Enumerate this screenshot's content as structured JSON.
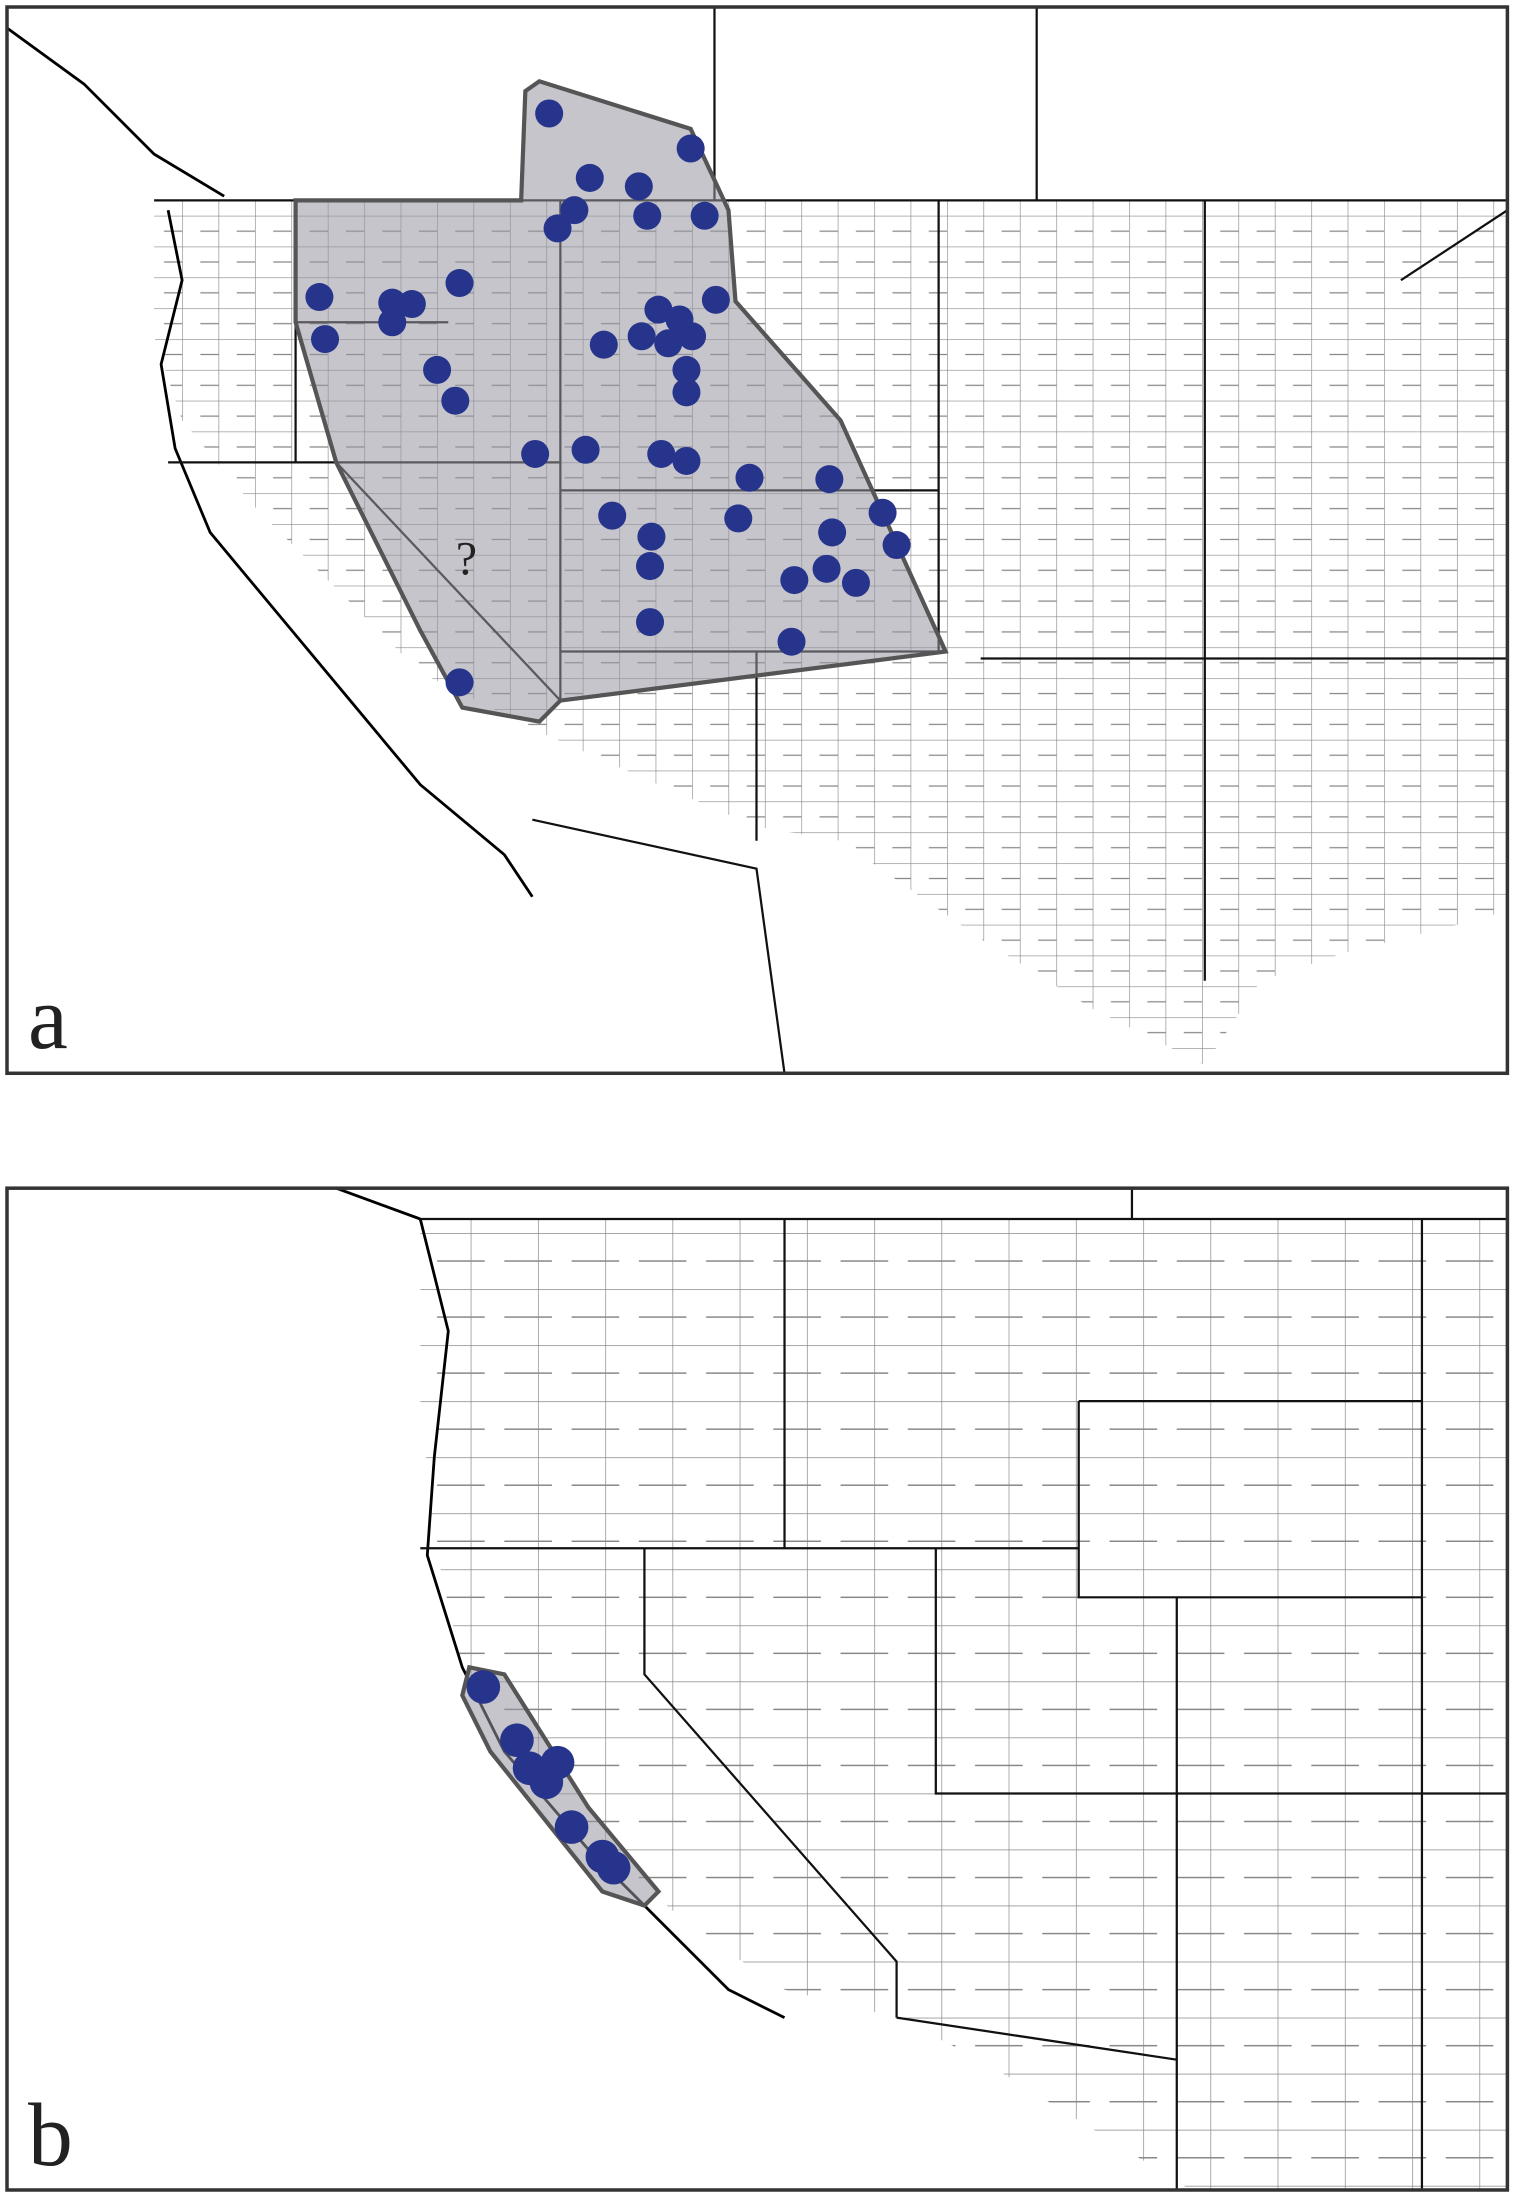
{
  "panels": [
    {
      "label": "a",
      "annotation": "?"
    },
    {
      "label": "b"
    }
  ]
}
